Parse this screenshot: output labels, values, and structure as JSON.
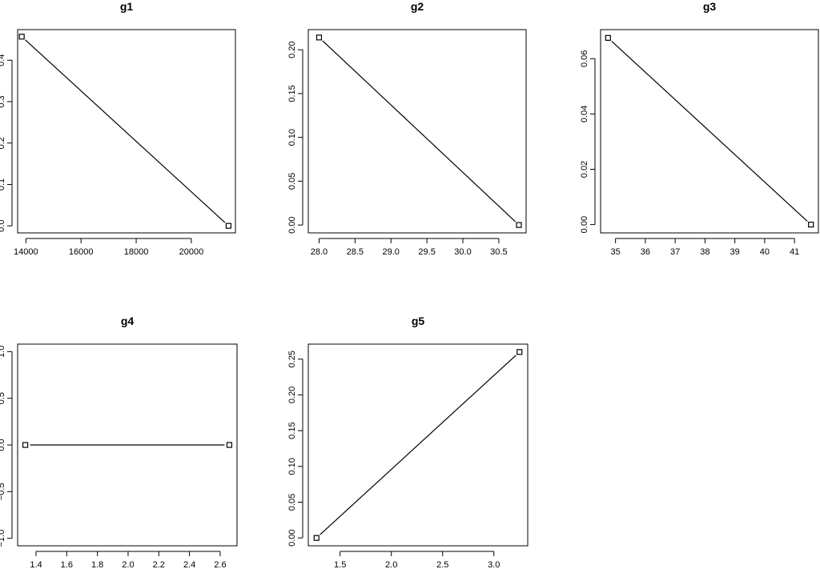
{
  "chart_data": [
    {
      "type": "line",
      "title": "g1",
      "xlabel": "",
      "ylabel": "",
      "points": [
        {
          "x": 13850,
          "y": 0.457
        },
        {
          "x": 21350,
          "y": 0.0
        }
      ],
      "xlim": [
        13700,
        21600
      ],
      "ylim": [
        -0.017,
        0.474
      ],
      "xticks": [
        14000,
        16000,
        18000,
        20000
      ],
      "xtick_labels": [
        "14000",
        "16000",
        "18000",
        "20000"
      ],
      "yticks": [
        0.0,
        0.1,
        0.2,
        0.3,
        0.4
      ],
      "ytick_labels": [
        "0.0",
        "0.1",
        "0.2",
        "0.3",
        "0.4"
      ],
      "grid": false,
      "markers": "open-square"
    },
    {
      "type": "line",
      "title": "g2",
      "xlabel": "",
      "ylabel": "",
      "points": [
        {
          "x": 28.0,
          "y": 0.214
        },
        {
          "x": 30.78,
          "y": 0.0
        }
      ],
      "xlim": [
        27.85,
        30.88
      ],
      "ylim": [
        -0.009,
        0.223
      ],
      "xticks": [
        28.0,
        28.5,
        29.0,
        29.5,
        30.0,
        30.5
      ],
      "xtick_labels": [
        "28.0",
        "28.5",
        "29.0",
        "29.5",
        "30.0",
        "30.5"
      ],
      "yticks": [
        0.0,
        0.05,
        0.1,
        0.15,
        0.2
      ],
      "ytick_labels": [
        "0.00",
        "0.05",
        "0.10",
        "0.15",
        "0.20"
      ],
      "grid": false,
      "markers": "open-square"
    },
    {
      "type": "line",
      "title": "g3",
      "xlabel": "",
      "ylabel": "",
      "points": [
        {
          "x": 34.75,
          "y": 0.0675
        },
        {
          "x": 41.55,
          "y": 0.0
        }
      ],
      "xlim": [
        34.5,
        41.8
      ],
      "ylim": [
        -0.003,
        0.0705
      ],
      "xticks": [
        35,
        36,
        37,
        38,
        39,
        40,
        41
      ],
      "xtick_labels": [
        "35",
        "36",
        "37",
        "38",
        "39",
        "40",
        "41"
      ],
      "yticks": [
        0.0,
        0.02,
        0.04,
        0.06
      ],
      "ytick_labels": [
        "0.00",
        "0.02",
        "0.04",
        "0.06"
      ],
      "grid": false,
      "markers": "open-square"
    },
    {
      "type": "line",
      "title": "g4",
      "xlabel": "",
      "ylabel": "",
      "points": [
        {
          "x": 1.33,
          "y": 0.0
        },
        {
          "x": 2.66,
          "y": 0.0
        }
      ],
      "xlim": [
        1.28,
        2.71
      ],
      "ylim": [
        -1.08,
        1.08
      ],
      "xticks": [
        1.4,
        1.6,
        1.8,
        2.0,
        2.2,
        2.4,
        2.6
      ],
      "xtick_labels": [
        "1.4",
        "1.6",
        "1.8",
        "2.0",
        "2.2",
        "2.4",
        "2.6"
      ],
      "yticks": [
        -1.0,
        -0.5,
        0.0,
        0.5,
        1.0
      ],
      "ytick_labels": [
        "−1.0",
        "−0.5",
        "0.0",
        "0.5",
        "1.0"
      ],
      "grid": false,
      "markers": "open-square"
    },
    {
      "type": "line",
      "title": "g5",
      "xlabel": "",
      "ylabel": "",
      "points": [
        {
          "x": 1.27,
          "y": 0.0
        },
        {
          "x": 3.25,
          "y": 0.26
        }
      ],
      "xlim": [
        1.19,
        3.33
      ],
      "ylim": [
        -0.011,
        0.271
      ],
      "xticks": [
        1.5,
        2.0,
        2.5,
        3.0
      ],
      "xtick_labels": [
        "1.5",
        "2.0",
        "2.5",
        "3.0"
      ],
      "yticks": [
        0.0,
        0.05,
        0.1,
        0.15,
        0.2,
        0.25
      ],
      "ytick_labels": [
        "0.00",
        "0.05",
        "0.10",
        "0.15",
        "0.20",
        "0.25"
      ],
      "grid": false,
      "markers": "open-square"
    }
  ]
}
